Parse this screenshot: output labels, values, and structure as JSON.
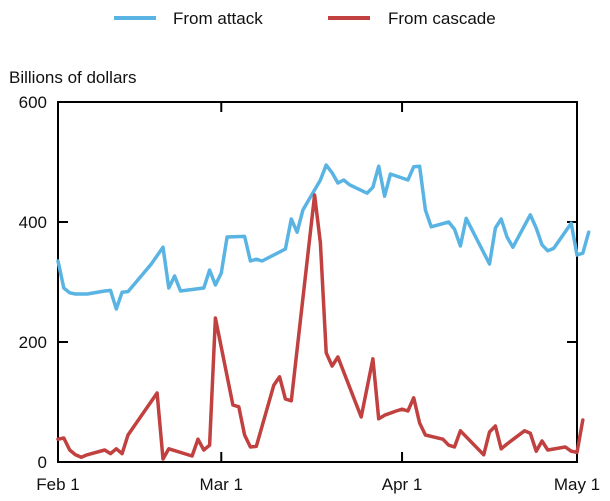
{
  "chart_data": {
    "type": "line",
    "ylabel": "Billions of dollars",
    "ylim": [
      0,
      600
    ],
    "yticks": [
      0,
      200,
      400,
      600
    ],
    "xlim": [
      "2015-02-01",
      "2015-05-01"
    ],
    "xticks": [
      {
        "date": "2015-02-01",
        "label": "Feb 1"
      },
      {
        "date": "2015-03-01",
        "label": "Mar 1"
      },
      {
        "date": "2015-04-01",
        "label": "Apr 1"
      },
      {
        "date": "2015-05-01",
        "label": "May 1"
      }
    ],
    "legend_position": "top-center",
    "grid": false,
    "series": [
      {
        "name": "From attack",
        "color": "#5ab4e3",
        "points": [
          [
            "2015-02-01",
            335
          ],
          [
            "2015-02-02",
            290
          ],
          [
            "2015-02-03",
            282
          ],
          [
            "2015-02-04",
            280
          ],
          [
            "2015-02-06",
            280
          ],
          [
            "2015-02-09",
            285
          ],
          [
            "2015-02-10",
            286
          ],
          [
            "2015-02-11",
            255
          ],
          [
            "2015-02-12",
            283
          ],
          [
            "2015-02-13",
            284
          ],
          [
            "2015-02-17",
            330
          ],
          [
            "2015-02-19",
            358
          ],
          [
            "2015-02-20",
            290
          ],
          [
            "2015-02-21",
            310
          ],
          [
            "2015-02-22",
            285
          ],
          [
            "2015-02-26",
            290
          ],
          [
            "2015-02-27",
            320
          ],
          [
            "2015-02-28",
            295
          ],
          [
            "2015-03-01",
            315
          ],
          [
            "2015-03-02",
            375
          ],
          [
            "2015-03-05",
            376
          ],
          [
            "2015-03-06",
            335
          ],
          [
            "2015-03-07",
            338
          ],
          [
            "2015-03-08",
            335
          ],
          [
            "2015-03-12",
            355
          ],
          [
            "2015-03-13",
            405
          ],
          [
            "2015-03-14",
            383
          ],
          [
            "2015-03-15",
            420
          ],
          [
            "2015-03-18",
            470
          ],
          [
            "2015-03-19",
            495
          ],
          [
            "2015-03-20",
            482
          ],
          [
            "2015-03-21",
            465
          ],
          [
            "2015-03-22",
            470
          ],
          [
            "2015-03-23",
            462
          ],
          [
            "2015-03-26",
            448
          ],
          [
            "2015-03-27",
            458
          ],
          [
            "2015-03-28",
            493
          ],
          [
            "2015-03-29",
            443
          ],
          [
            "2015-03-30",
            480
          ],
          [
            "2015-04-02",
            470
          ],
          [
            "2015-04-03",
            492
          ],
          [
            "2015-04-04",
            493
          ],
          [
            "2015-04-05",
            420
          ],
          [
            "2015-04-06",
            392
          ],
          [
            "2015-04-09",
            400
          ],
          [
            "2015-04-10",
            388
          ],
          [
            "2015-04-11",
            360
          ],
          [
            "2015-04-12",
            406
          ],
          [
            "2015-04-16",
            330
          ],
          [
            "2015-04-17",
            390
          ],
          [
            "2015-04-18",
            405
          ],
          [
            "2015-04-19",
            375
          ],
          [
            "2015-04-20",
            358
          ],
          [
            "2015-04-23",
            412
          ],
          [
            "2015-04-24",
            390
          ],
          [
            "2015-04-25",
            362
          ],
          [
            "2015-04-26",
            352
          ],
          [
            "2015-04-27",
            356
          ],
          [
            "2015-04-30",
            398
          ],
          [
            "2015-05-01",
            345
          ],
          [
            "2015-05-02",
            348
          ],
          [
            "2015-05-03",
            383
          ]
        ]
      },
      {
        "name": "From cascade",
        "color": "#c0413f",
        "points": [
          [
            "2015-02-01",
            38
          ],
          [
            "2015-02-02",
            40
          ],
          [
            "2015-02-03",
            20
          ],
          [
            "2015-02-04",
            12
          ],
          [
            "2015-02-05",
            8
          ],
          [
            "2015-02-06",
            12
          ],
          [
            "2015-02-09",
            20
          ],
          [
            "2015-02-10",
            14
          ],
          [
            "2015-02-11",
            22
          ],
          [
            "2015-02-12",
            14
          ],
          [
            "2015-02-13",
            45
          ],
          [
            "2015-02-18",
            115
          ],
          [
            "2015-02-19",
            5
          ],
          [
            "2015-02-20",
            22
          ],
          [
            "2015-02-24",
            10
          ],
          [
            "2015-02-25",
            38
          ],
          [
            "2015-02-26",
            20
          ],
          [
            "2015-02-27",
            28
          ],
          [
            "2015-02-28",
            240
          ],
          [
            "2015-03-03",
            95
          ],
          [
            "2015-03-04",
            92
          ],
          [
            "2015-03-05",
            45
          ],
          [
            "2015-03-06",
            25
          ],
          [
            "2015-03-07",
            26
          ],
          [
            "2015-03-10",
            128
          ],
          [
            "2015-03-11",
            142
          ],
          [
            "2015-03-12",
            105
          ],
          [
            "2015-03-13",
            102
          ],
          [
            "2015-03-17",
            445
          ],
          [
            "2015-03-18",
            365
          ],
          [
            "2015-03-19",
            182
          ],
          [
            "2015-03-20",
            160
          ],
          [
            "2015-03-21",
            175
          ],
          [
            "2015-03-25",
            75
          ],
          [
            "2015-03-27",
            172
          ],
          [
            "2015-03-28",
            72
          ],
          [
            "2015-03-29",
            78
          ],
          [
            "2015-03-31",
            85
          ],
          [
            "2015-04-01",
            88
          ],
          [
            "2015-04-02",
            85
          ],
          [
            "2015-04-03",
            107
          ],
          [
            "2015-04-04",
            65
          ],
          [
            "2015-04-05",
            45
          ],
          [
            "2015-04-08",
            38
          ],
          [
            "2015-04-09",
            28
          ],
          [
            "2015-04-10",
            25
          ],
          [
            "2015-04-11",
            52
          ],
          [
            "2015-04-15",
            12
          ],
          [
            "2015-04-16",
            50
          ],
          [
            "2015-04-17",
            60
          ],
          [
            "2015-04-18",
            22
          ],
          [
            "2015-04-19",
            30
          ],
          [
            "2015-04-22",
            52
          ],
          [
            "2015-04-23",
            48
          ],
          [
            "2015-04-24",
            18
          ],
          [
            "2015-04-25",
            35
          ],
          [
            "2015-04-26",
            20
          ],
          [
            "2015-04-29",
            25
          ],
          [
            "2015-04-30",
            18
          ],
          [
            "2015-05-01",
            16
          ],
          [
            "2015-05-02",
            70
          ]
        ]
      }
    ]
  }
}
